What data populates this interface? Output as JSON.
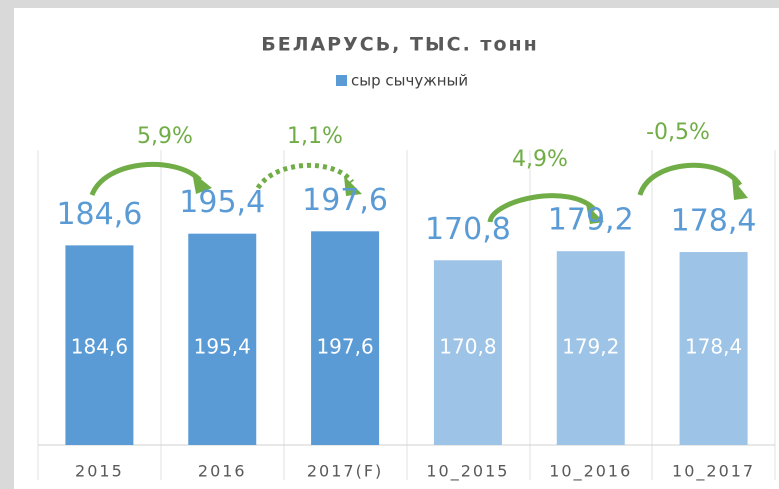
{
  "chart_data": {
    "type": "bar",
    "title": "БЕЛАРУСЬ, ТЫС. тонн",
    "legend": "сыр сычужный",
    "legend_color": "#5b9bd5",
    "categories": [
      "2015",
      "2016",
      "2017(F)",
      "10_2015",
      "10_2016",
      "10_2017"
    ],
    "values": [
      184.6,
      195.4,
      197.6,
      170.8,
      179.2,
      178.4
    ],
    "value_labels": [
      "184,6",
      "195,4",
      "197,6",
      "170,8",
      "179,2",
      "178,4"
    ],
    "colors": [
      "#5b9bd5",
      "#5b9bd5",
      "#5b9bd5",
      "#9dc3e6",
      "#9dc3e6",
      "#9dc3e6"
    ],
    "ylim": [
      0,
      270
    ],
    "annotations": [
      "5,9%",
      "1,1%",
      "4,9%",
      "-0,5%"
    ]
  }
}
